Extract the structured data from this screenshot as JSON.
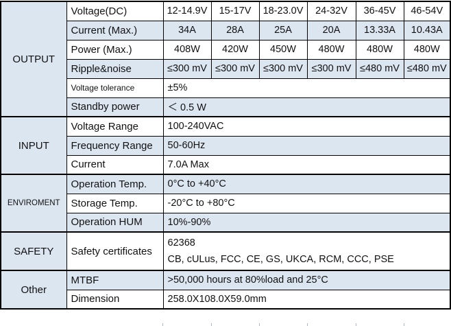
{
  "table": {
    "colors": {
      "stripe": "#dce6f1",
      "border": "#000000",
      "text": "#111111"
    },
    "value_column_count": 6,
    "sections": [
      {
        "label": "OUTPUT",
        "rows": [
          {
            "label": "Voltage(DC)",
            "fill": "white",
            "values": [
              "12-14.9V",
              "15-17V",
              "18-23.0V",
              "24-32V",
              "36-45V",
              "46-54V"
            ]
          },
          {
            "label": "Current (Max.)",
            "fill": "stripe",
            "values": [
              "34A",
              "28A",
              "25A",
              "20A",
              "13.33A",
              "10.43A"
            ]
          },
          {
            "label": "Power (Max.)",
            "fill": "white",
            "values": [
              "408W",
              "420W",
              "450W",
              "480W",
              "480W",
              "480W"
            ]
          },
          {
            "label": "Ripple&noise",
            "fill": "stripe",
            "values": [
              "≤300 mV",
              "≤300 mV",
              "≤300 mV",
              "≤300 mV",
              "≤480 mV",
              "≤480 mV"
            ]
          },
          {
            "label": "Voltage tolerance",
            "fill": "white",
            "small_label": true,
            "value": "±5%"
          },
          {
            "label": "Standby power",
            "fill": "stripe",
            "value": "＜ 0.5 W"
          }
        ]
      },
      {
        "label": "INPUT",
        "rows": [
          {
            "label": "Voltage Range",
            "fill": "white",
            "value": "100-240VAC"
          },
          {
            "label": "Frequency Range",
            "fill": "stripe",
            "value": "50-60Hz"
          },
          {
            "label": "Current",
            "fill": "white",
            "value": "7.0A Max"
          }
        ]
      },
      {
        "label": "ENVIROMENT",
        "small_section_label": true,
        "rows": [
          {
            "label": "Operation Temp.",
            "fill": "stripe",
            "value": "0°C to +40°C"
          },
          {
            "label": "Storage Temp.",
            "fill": "white",
            "value": "-20°C to +80°C"
          },
          {
            "label": "Operation HUM",
            "fill": "stripe",
            "value": "10%-90%"
          }
        ]
      },
      {
        "label": "SAFETY",
        "rows": [
          {
            "label": "Safety certificates",
            "fill": "white",
            "tall": true,
            "value_lines": [
              "62368",
              "CB, cULus, FCC, CE, GS, UKCA, RCM, CCC, PSE"
            ]
          }
        ]
      },
      {
        "label": "Other",
        "rows": [
          {
            "label": "MTBF",
            "fill": "stripe",
            "value": ">50,000 hours at 80%load and 25°C"
          },
          {
            "label": "Dimension",
            "fill": "white",
            "value": "258.0X108.0X59.0mm"
          }
        ]
      }
    ]
  }
}
